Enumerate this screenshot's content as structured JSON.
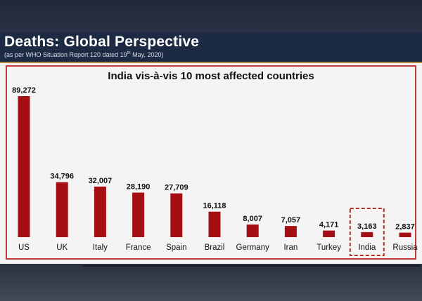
{
  "slide": {
    "title": "Deaths: Global Perspective",
    "subtitle_pre": "(as per WHO Situation Report 120 dated 19",
    "subtitle_sup": "th",
    "subtitle_post": " May, 2020)"
  },
  "colors": {
    "bar": "#a50f14",
    "header_bg": "#1d2a44",
    "highlight_border": "#b0302a"
  },
  "chart_data": {
    "type": "bar",
    "title": "India vis-à-vis 10 most affected countries",
    "categories": [
      "US",
      "UK",
      "Italy",
      "France",
      "Spain",
      "Brazil",
      "Germany",
      "Iran",
      "Turkey",
      "India",
      "Russia"
    ],
    "values": [
      89272,
      34796,
      32007,
      28190,
      27709,
      16118,
      8007,
      7057,
      4171,
      3163,
      2837
    ],
    "value_labels": [
      "89,272",
      "34,796",
      "32,007",
      "28,190",
      "27,709",
      "16,118",
      "8,007",
      "7,057",
      "4,171",
      "3,163",
      "2,837"
    ],
    "highlighted_category": "India",
    "ylim": [
      0,
      89272
    ]
  }
}
